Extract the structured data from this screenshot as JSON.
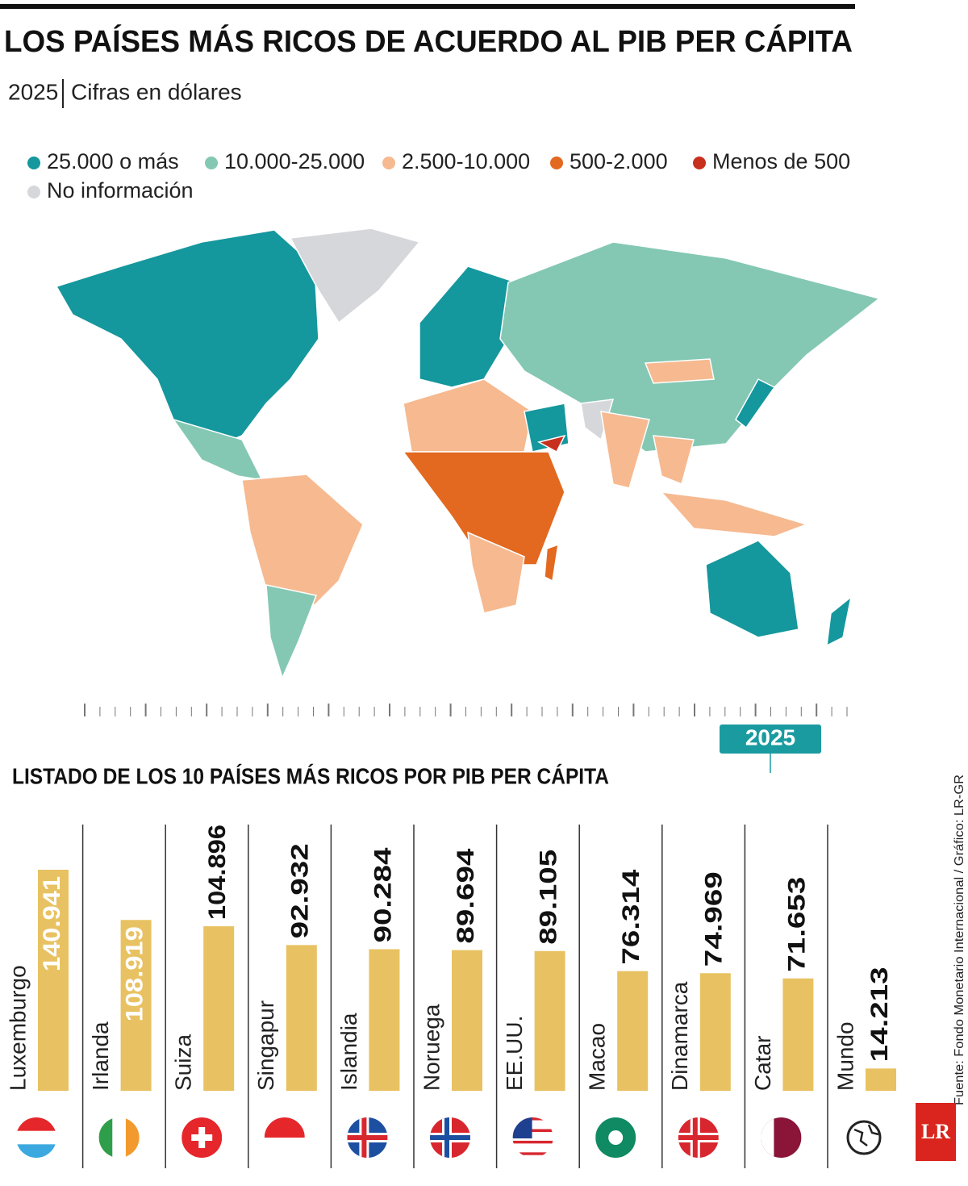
{
  "title": "LOS PAÍSES MÁS RICOS DE ACUERDO AL PIB PER CÁPITA",
  "subtitle": {
    "year": "2025",
    "units": "Cifras en dólares"
  },
  "map_legend": [
    {
      "label": "25.000 o más",
      "color": "#14979d"
    },
    {
      "label": "10.000-25.000",
      "color": "#84c8b4"
    },
    {
      "label": "2.500-10.000",
      "color": "#f6b990"
    },
    {
      "label": "500-2.000",
      "color": "#e2691f"
    },
    {
      "label": "Menos de 500",
      "color": "#c8301e"
    },
    {
      "label": "No información",
      "color": "#d6d7db"
    }
  ],
  "timeline": {
    "selected": "2025"
  },
  "chart_data": {
    "type": "bar",
    "title": "LISTADO DE LOS 10 PAÍSES MÁS RICOS POR PIB PER CÁPITA",
    "categories": [
      "Luxemburgo",
      "Irlanda",
      "Suiza",
      "Singapur",
      "Islandia",
      "Noruega",
      "EE.UU.",
      "Macao",
      "Dinamarca",
      "Catar",
      "Mundo"
    ],
    "values": [
      140941,
      108919,
      104896,
      92932,
      90284,
      89694,
      89105,
      76314,
      74969,
      71653,
      14213
    ],
    "value_labels": [
      "140.941",
      "108.919",
      "104.896",
      "92.932",
      "90.284",
      "89.694",
      "89.105",
      "76.314",
      "74.969",
      "71.653",
      "14.213"
    ],
    "color": "#e8c262"
  },
  "source": "Fuente: Fondo Monetario Internacional / Gráfico: LR-GR",
  "logo": "LR"
}
